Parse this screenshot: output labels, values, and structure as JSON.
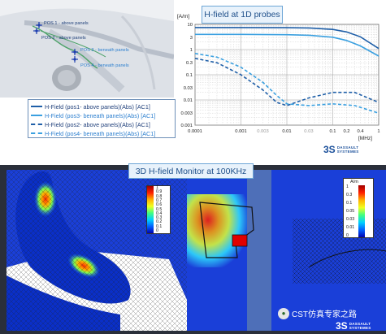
{
  "probes": {
    "pos1": "POS 1 - above panels",
    "pos2": "POS 2 - above panels",
    "pos3": "POS 3 - beneath panels",
    "pos4": "POS 4 - beneath panels"
  },
  "legend": [
    {
      "label": "H-Field (pos1- above panels)(Abs) [AC1]",
      "style": "solid-dark"
    },
    {
      "label": "H-Field (pos3- beneath panels)(Abs) [AC1]",
      "style": "solid-light"
    },
    {
      "label": "H-Field (pos2- above panels)(Abs) [AC1]",
      "style": "dash-dark"
    },
    {
      "label": "H-Field (pos4- beneath panels)(Abs) [AC1]",
      "style": "dash-light"
    }
  ],
  "chart_title": "H-field at 1D probes",
  "monitor_title": "3D H-field Monitor at 100KHz",
  "brand": {
    "line1": "DASSAULT",
    "line2": "SYSTEMES",
    "mark": "3S"
  },
  "colors": {
    "accent": "#1e4f8a",
    "series_dark": "#1f5fa8",
    "series_light": "#3aa0e0"
  },
  "colorbar_left": {
    "labels": [
      "1",
      "0.9",
      "0.8",
      "0.7",
      "0.6",
      "0.5",
      "0.4",
      "0.3",
      "0.2",
      "0.1",
      "0"
    ]
  },
  "colorbar_right": {
    "unit": "A/m",
    "labels": [
      "1",
      "0.3",
      "0.1",
      "0.05",
      "0.03",
      "0.01",
      "0"
    ]
  },
  "watermark": "CST仿真专家之路",
  "chart_data": {
    "type": "line",
    "title": "H-field at 1D probes",
    "ylabel": "[A/m]",
    "xlabel": "[MHz]",
    "x_scale": "log",
    "y_scale": "log",
    "xlim": [
      0.0001,
      1
    ],
    "ylim": [
      0.001,
      10
    ],
    "grid": true,
    "x_ticks": [
      "0.0001",
      "0.001",
      "0.003",
      "0.01",
      "0.03",
      "0.1",
      "0.2",
      "0.4",
      "1"
    ],
    "y_ticks": [
      "10",
      "3",
      "1",
      "0.3",
      "0.1",
      "0.03",
      "0.01",
      "0.003",
      "0.001"
    ],
    "series": [
      {
        "name": "H-Field (pos1- above panels)(Abs) [AC1]",
        "x": [
          0.0001,
          0.001,
          0.01,
          0.03,
          0.1,
          0.2,
          0.4,
          1
        ],
        "y": [
          7.5,
          7.5,
          7.4,
          7.2,
          6.3,
          5.0,
          3.2,
          1.1
        ]
      },
      {
        "name": "H-Field (pos3- beneath panels)(Abs) [AC1]",
        "x": [
          0.0001,
          0.001,
          0.01,
          0.03,
          0.1,
          0.2,
          0.4,
          1
        ],
        "y": [
          4.0,
          4.0,
          3.9,
          3.7,
          3.1,
          2.3,
          1.4,
          0.55
        ]
      },
      {
        "name": "H-Field (pos2- above panels)(Abs) [AC1]",
        "x": [
          0.0001,
          0.0003,
          0.001,
          0.003,
          0.006,
          0.01,
          0.03,
          0.1,
          0.3,
          1
        ],
        "y": [
          0.45,
          0.3,
          0.1,
          0.025,
          0.008,
          0.006,
          0.012,
          0.02,
          0.02,
          0.008
        ]
      },
      {
        "name": "H-Field (pos4- beneath panels)(Abs) [AC1]",
        "x": [
          0.0001,
          0.0003,
          0.001,
          0.003,
          0.006,
          0.01,
          0.03,
          0.1,
          0.3,
          1
        ],
        "y": [
          0.7,
          0.5,
          0.2,
          0.05,
          0.015,
          0.007,
          0.006,
          0.007,
          0.006,
          0.003
        ]
      }
    ]
  }
}
